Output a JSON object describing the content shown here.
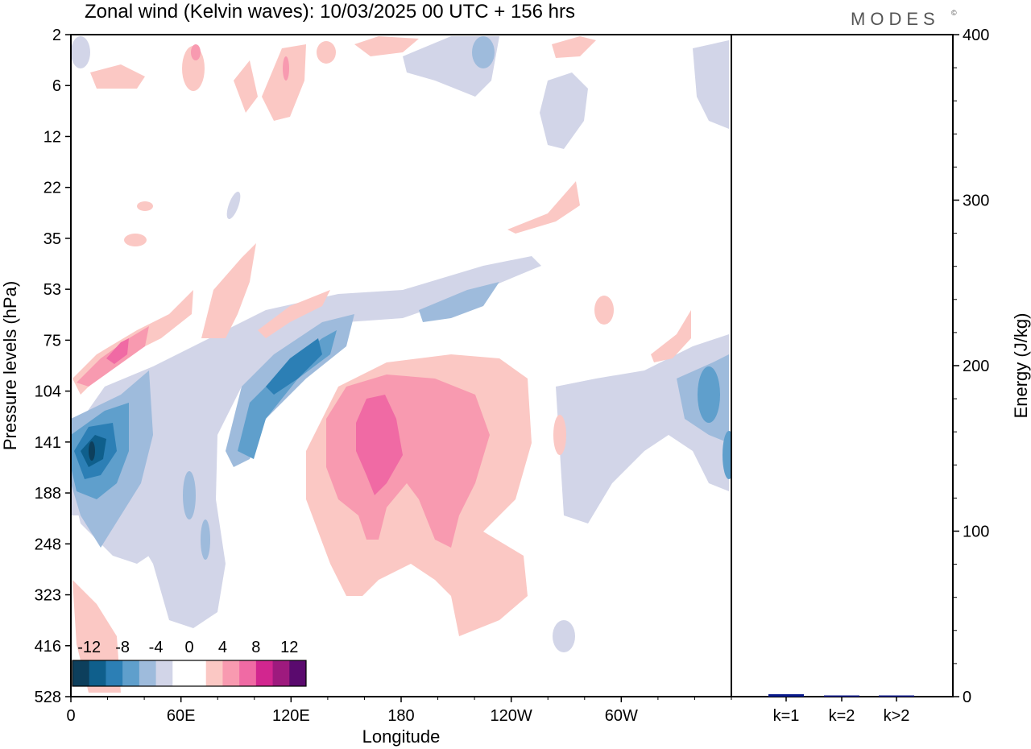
{
  "title": "Zonal wind (Kelvin waves):  10/03/2025  00 UTC  + 156 hrs",
  "brand": "MODES",
  "brand_mark": "©",
  "colors": {
    "neg": [
      "#0d3f5c",
      "#0f5f8c",
      "#2c7fb5",
      "#5f9fcc",
      "#9ebbdc",
      "#d2d5e8"
    ],
    "zero": "#ffffff",
    "pos": [
      "#fbc8c4",
      "#f89ab0",
      "#f06aa4",
      "#d2268f",
      "#9e1a7e",
      "#5a0a6e"
    ],
    "bar": "#0a1a8c"
  },
  "chart_data": [
    {
      "type": "heatmap",
      "title": "Zonal wind (Kelvin waves):  10/03/2025  00 UTC  + 156 hrs",
      "xlabel": "Longitude",
      "ylabel": "Pressure levels (hPa)",
      "x_ticks": [
        "0",
        "60E",
        "120E",
        "180",
        "120W",
        "60W"
      ],
      "x_tick_values": [
        0,
        60,
        120,
        180,
        240,
        300
      ],
      "xlim": [
        0,
        360
      ],
      "y_ticks": [
        "2",
        "6",
        "12",
        "22",
        "35",
        "53",
        "75",
        "104",
        "141",
        "188",
        "248",
        "323",
        "416",
        "528"
      ],
      "colorbar": {
        "labels": [
          "-12",
          "-8",
          "-4",
          "0",
          "4",
          "8",
          "12"
        ],
        "levels": [
          -14,
          -12,
          -10,
          -8,
          -6,
          -4,
          -2,
          2,
          4,
          6,
          8,
          10,
          12,
          14
        ]
      },
      "features": [
        {
          "lon": 15,
          "level_index": 8.5,
          "value": -12
        },
        {
          "lon": 105,
          "level_index": 6.8,
          "value": -8
        },
        {
          "lon": 160,
          "level_index": 8.5,
          "value": 8
        },
        {
          "lon": 25,
          "level_index": 6.3,
          "value": 8
        },
        {
          "lon": 355,
          "level_index": 8.3,
          "value": -8
        }
      ]
    },
    {
      "type": "bar",
      "ylabel": "Energy (J/kg)",
      "ylim": [
        0,
        400
      ],
      "y_ticks": [
        "0",
        "100",
        "200",
        "300",
        "400"
      ],
      "y_tick_values": [
        0,
        100,
        200,
        300,
        400
      ],
      "categories": [
        "k=1",
        "k=2",
        "k>2"
      ],
      "values": [
        1.5,
        0.6,
        0.7
      ]
    }
  ]
}
